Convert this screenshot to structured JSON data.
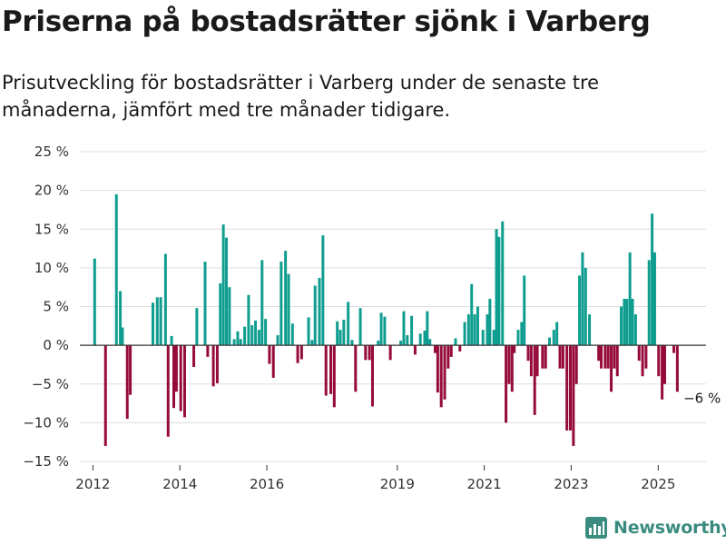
{
  "header": {
    "title": "Priserna på bostadsrätter sjönk i Varberg",
    "subtitle": "Prisutveckling för bostadsrätter i Varberg under de senaste tre månaderna, jämfört med tre månader tidigare."
  },
  "brand": {
    "name": "Newsworthy"
  },
  "colors": {
    "positive": "#0f9d8f",
    "negative": "#960b3c",
    "brand": "#3b8c80",
    "grid": "#dddddd"
  },
  "chart_data": {
    "type": "bar",
    "title": "Priserna på bostadsrätter sjönk i Varberg",
    "subtitle": "Prisutveckling för bostadsrätter i Varberg under de senaste tre månaderna, jämfört med tre månader tidigare.",
    "ylim": [
      -15,
      25
    ],
    "yticks": [
      -15,
      -10,
      -5,
      0,
      5,
      10,
      15,
      20,
      25
    ],
    "ytick_labels": [
      "−15 %",
      "−10 %",
      "−5 %",
      "0 %",
      "5 %",
      "10 %",
      "15 %",
      "20 %",
      "25 %"
    ],
    "xlim": [
      2011.7,
      2026.1
    ],
    "xticks": [
      2012,
      2014,
      2016,
      2019,
      2021,
      2023,
      2025
    ],
    "xtick_labels": [
      "2012",
      "2014",
      "2016",
      "2019",
      "2021",
      "2023",
      "2025"
    ],
    "grid": true,
    "positive_color": "#0f9d8f",
    "negative_color": "#960b3c",
    "annotation": {
      "text": "−6 %",
      "x": 2025.58,
      "y": -6
    },
    "bars": [
      {
        "x": 2012.04,
        "value": 11.2
      },
      {
        "x": 2012.29,
        "value": -13.0
      },
      {
        "x": 2012.54,
        "value": 19.5
      },
      {
        "x": 2012.63,
        "value": 7.0
      },
      {
        "x": 2012.68,
        "value": 2.3
      },
      {
        "x": 2012.79,
        "value": -9.5
      },
      {
        "x": 2012.86,
        "value": -6.4
      },
      {
        "x": 2013.38,
        "value": 5.5
      },
      {
        "x": 2013.48,
        "value": 6.2
      },
      {
        "x": 2013.56,
        "value": 6.2
      },
      {
        "x": 2013.67,
        "value": 11.8
      },
      {
        "x": 2013.73,
        "value": -11.8
      },
      {
        "x": 2013.81,
        "value": 1.2
      },
      {
        "x": 2013.86,
        "value": -8.1
      },
      {
        "x": 2013.92,
        "value": -6.0
      },
      {
        "x": 2014.02,
        "value": -8.5
      },
      {
        "x": 2014.11,
        "value": -9.3
      },
      {
        "x": 2014.32,
        "value": -2.8
      },
      {
        "x": 2014.39,
        "value": 4.8
      },
      {
        "x": 2014.58,
        "value": 10.8
      },
      {
        "x": 2014.64,
        "value": -1.5
      },
      {
        "x": 2014.77,
        "value": -5.3
      },
      {
        "x": 2014.86,
        "value": -4.9
      },
      {
        "x": 2014.93,
        "value": 8.0
      },
      {
        "x": 2015.0,
        "value": 15.6
      },
      {
        "x": 2015.07,
        "value": 13.9
      },
      {
        "x": 2015.14,
        "value": 7.5
      },
      {
        "x": 2015.25,
        "value": 0.8
      },
      {
        "x": 2015.33,
        "value": 1.8
      },
      {
        "x": 2015.4,
        "value": 0.8
      },
      {
        "x": 2015.49,
        "value": 2.4
      },
      {
        "x": 2015.58,
        "value": 6.5
      },
      {
        "x": 2015.66,
        "value": 2.6
      },
      {
        "x": 2015.74,
        "value": 3.2
      },
      {
        "x": 2015.82,
        "value": 2.0
      },
      {
        "x": 2015.89,
        "value": 11.0
      },
      {
        "x": 2015.97,
        "value": 3.4
      },
      {
        "x": 2016.06,
        "value": -2.4
      },
      {
        "x": 2016.15,
        "value": -4.2
      },
      {
        "x": 2016.25,
        "value": 1.3
      },
      {
        "x": 2016.33,
        "value": 10.8
      },
      {
        "x": 2016.43,
        "value": 12.2
      },
      {
        "x": 2016.5,
        "value": 9.2
      },
      {
        "x": 2016.59,
        "value": 2.8
      },
      {
        "x": 2016.71,
        "value": -2.3
      },
      {
        "x": 2016.8,
        "value": -1.8
      },
      {
        "x": 2016.96,
        "value": 3.6
      },
      {
        "x": 2017.04,
        "value": 0.7
      },
      {
        "x": 2017.11,
        "value": 7.7
      },
      {
        "x": 2017.21,
        "value": 8.7
      },
      {
        "x": 2017.29,
        "value": 14.2
      },
      {
        "x": 2017.36,
        "value": -6.5
      },
      {
        "x": 2017.47,
        "value": -6.3
      },
      {
        "x": 2017.55,
        "value": -8.0
      },
      {
        "x": 2017.62,
        "value": 3.1
      },
      {
        "x": 2017.69,
        "value": 2.0
      },
      {
        "x": 2017.77,
        "value": 3.3
      },
      {
        "x": 2017.87,
        "value": 5.6
      },
      {
        "x": 2017.96,
        "value": 0.7
      },
      {
        "x": 2018.04,
        "value": -6.0
      },
      {
        "x": 2018.15,
        "value": 4.8
      },
      {
        "x": 2018.27,
        "value": -1.9
      },
      {
        "x": 2018.36,
        "value": -1.9
      },
      {
        "x": 2018.43,
        "value": -7.9
      },
      {
        "x": 2018.56,
        "value": 0.6
      },
      {
        "x": 2018.63,
        "value": 4.2
      },
      {
        "x": 2018.71,
        "value": 3.7
      },
      {
        "x": 2018.84,
        "value": -1.9
      },
      {
        "x": 2019.08,
        "value": 0.6
      },
      {
        "x": 2019.15,
        "value": 4.4
      },
      {
        "x": 2019.23,
        "value": 1.3
      },
      {
        "x": 2019.33,
        "value": 3.8
      },
      {
        "x": 2019.41,
        "value": -1.2
      },
      {
        "x": 2019.53,
        "value": 1.5
      },
      {
        "x": 2019.63,
        "value": 1.9
      },
      {
        "x": 2019.69,
        "value": 4.4
      },
      {
        "x": 2019.75,
        "value": 0.8
      },
      {
        "x": 2019.87,
        "value": -1.0
      },
      {
        "x": 2019.93,
        "value": -6.1
      },
      {
        "x": 2020.01,
        "value": -8.0
      },
      {
        "x": 2020.09,
        "value": -7.0
      },
      {
        "x": 2020.17,
        "value": -3.0
      },
      {
        "x": 2020.24,
        "value": -1.5
      },
      {
        "x": 2020.34,
        "value": 0.9
      },
      {
        "x": 2020.44,
        "value": -0.8
      },
      {
        "x": 2020.55,
        "value": 3.0
      },
      {
        "x": 2020.64,
        "value": 4.0
      },
      {
        "x": 2020.71,
        "value": 7.9
      },
      {
        "x": 2020.78,
        "value": 4.0
      },
      {
        "x": 2020.85,
        "value": 5.0
      },
      {
        "x": 2020.97,
        "value": 2.0
      },
      {
        "x": 2021.07,
        "value": 4.0
      },
      {
        "x": 2021.13,
        "value": 6.0
      },
      {
        "x": 2021.22,
        "value": 2.0
      },
      {
        "x": 2021.28,
        "value": 15.0
      },
      {
        "x": 2021.34,
        "value": 14.0
      },
      {
        "x": 2021.42,
        "value": 16.0
      },
      {
        "x": 2021.5,
        "value": -10.0
      },
      {
        "x": 2021.57,
        "value": -5.0
      },
      {
        "x": 2021.64,
        "value": -6.0
      },
      {
        "x": 2021.69,
        "value": -1.0
      },
      {
        "x": 2021.78,
        "value": 2.0
      },
      {
        "x": 2021.86,
        "value": 3.0
      },
      {
        "x": 2021.92,
        "value": 9.0
      },
      {
        "x": 2022.01,
        "value": -2.0
      },
      {
        "x": 2022.08,
        "value": -4.0
      },
      {
        "x": 2022.16,
        "value": -9.0
      },
      {
        "x": 2022.22,
        "value": -4.0
      },
      {
        "x": 2022.34,
        "value": -3.0
      },
      {
        "x": 2022.41,
        "value": -3.0
      },
      {
        "x": 2022.5,
        "value": 1.0
      },
      {
        "x": 2022.6,
        "value": 2.0
      },
      {
        "x": 2022.67,
        "value": 3.0
      },
      {
        "x": 2022.74,
        "value": -3.0
      },
      {
        "x": 2022.81,
        "value": -3.0
      },
      {
        "x": 2022.9,
        "value": -11.0
      },
      {
        "x": 2022.98,
        "value": -11.0
      },
      {
        "x": 2023.05,
        "value": -13.0
      },
      {
        "x": 2023.12,
        "value": -5.0
      },
      {
        "x": 2023.19,
        "value": 9.0
      },
      {
        "x": 2023.26,
        "value": 12.0
      },
      {
        "x": 2023.33,
        "value": 10.0
      },
      {
        "x": 2023.42,
        "value": 4.0
      },
      {
        "x": 2023.63,
        "value": -2.0
      },
      {
        "x": 2023.69,
        "value": -3.0
      },
      {
        "x": 2023.78,
        "value": -3.0
      },
      {
        "x": 2023.85,
        "value": -3.0
      },
      {
        "x": 2023.92,
        "value": -6.0
      },
      {
        "x": 2023.99,
        "value": -3.0
      },
      {
        "x": 2024.06,
        "value": -4.0
      },
      {
        "x": 2024.15,
        "value": 5.0
      },
      {
        "x": 2024.22,
        "value": 6.0
      },
      {
        "x": 2024.28,
        "value": 6.0
      },
      {
        "x": 2024.35,
        "value": 12.0
      },
      {
        "x": 2024.41,
        "value": 6.0
      },
      {
        "x": 2024.48,
        "value": 4.0
      },
      {
        "x": 2024.56,
        "value": -2.0
      },
      {
        "x": 2024.64,
        "value": -4.0
      },
      {
        "x": 2024.72,
        "value": -3.0
      },
      {
        "x": 2024.79,
        "value": 11.0
      },
      {
        "x": 2024.86,
        "value": 17.0
      },
      {
        "x": 2024.92,
        "value": 12.0
      },
      {
        "x": 2025.01,
        "value": -4.0
      },
      {
        "x": 2025.09,
        "value": -7.0
      },
      {
        "x": 2025.15,
        "value": -5.0
      },
      {
        "x": 2025.36,
        "value": -1.0
      },
      {
        "x": 2025.44,
        "value": -6.0
      }
    ]
  }
}
